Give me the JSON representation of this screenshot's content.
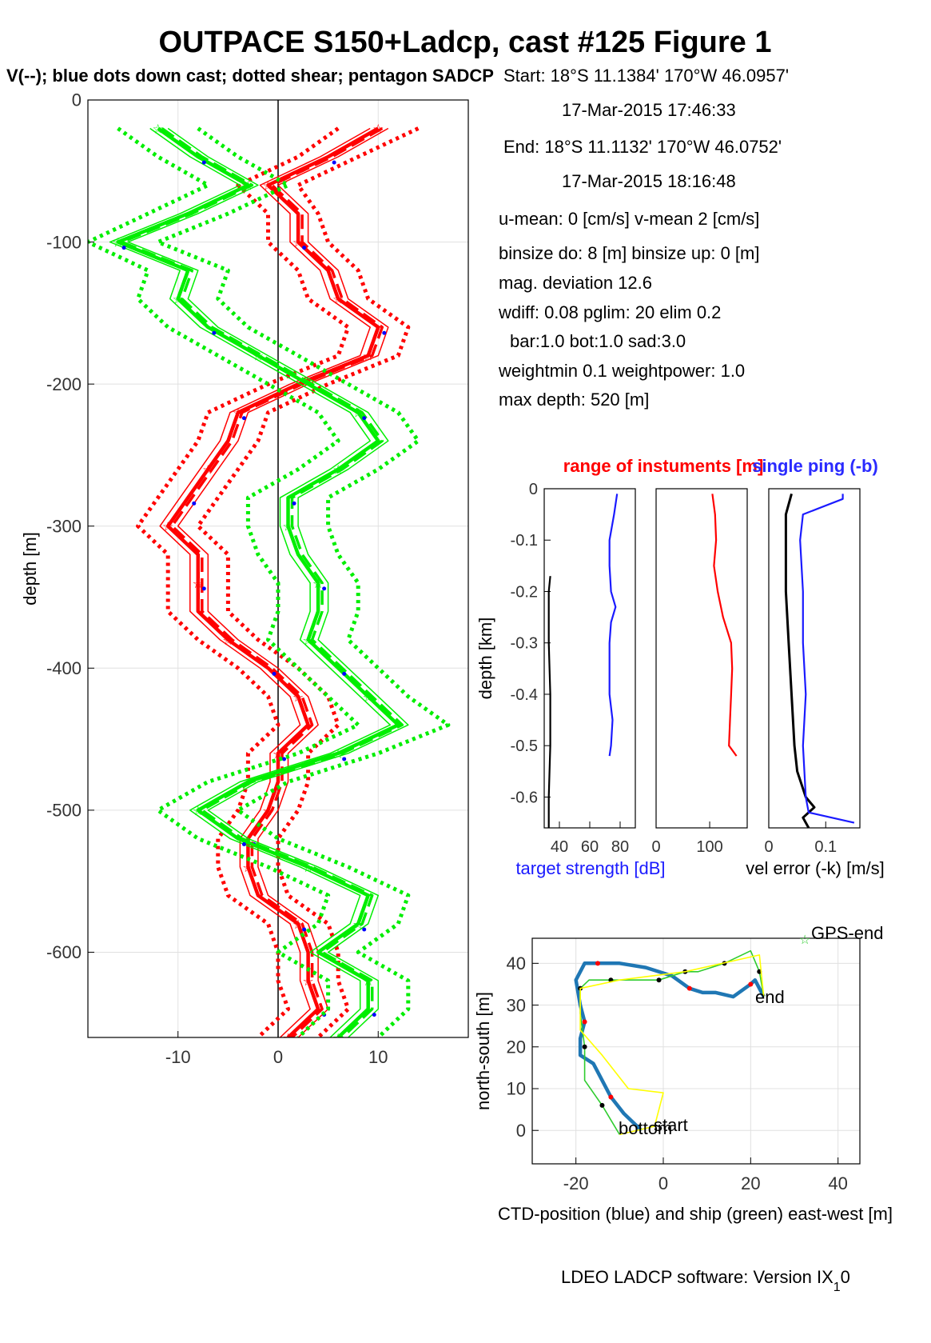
{
  "title": "OUTPACE S150+Ladcp, cast #125  Figure 1",
  "subtitle": "V(--); blue dots down cast; dotted shear; pentagon SADCP",
  "info": [
    "Start:  18°S 11.1384'      170°W 46.0957'",
    "17-Mar-2015 17:46:33",
    "End:  18°S 11.1132'      170°W 46.0752'",
    "17-Mar-2015 18:16:48",
    "u-mean:   0 [cm/s]    v-mean   2 [cm/s]",
    "binsize do: 8 [m]  binsize up:  0 [m]",
    "mag. deviation 12.6",
    "wdiff: 0.08  pglim: 20  elim 0.2",
    "bar:1.0 bot:1.0 sad:3.0",
    "weightmin 0.1  weightpower: 1.0",
    "max depth: 520 [m]"
  ],
  "footer": "LDEO LADCP software: Version IX",
  "footer_sub": "1",
  "footer_tail": "0",
  "colors": {
    "u": "#ff0000",
    "v": "#00ee00",
    "down": "#0000ff",
    "ts": "#1a1aff",
    "ctd": "#1f77b4",
    "ship": "#2ecc2e",
    "yellow": "#ffff00"
  },
  "chart_data": [
    {
      "type": "line",
      "name": "velocity-profile",
      "ylabel": "depth [m]",
      "xlim": [
        -19,
        19
      ],
      "ylim": [
        -660,
        0
      ],
      "xticks": [
        -10,
        0,
        10
      ],
      "xtick_labels": [
        "-10",
        "0",
        "10"
      ],
      "yticks": [
        0,
        -100,
        -200,
        -300,
        -400,
        -500,
        -600
      ],
      "ytick_labels": [
        "0",
        "-100",
        "-200",
        "-300",
        "-400",
        "-500",
        "-600"
      ],
      "grid": true,
      "series": [
        {
          "color": "red",
          "style": "solid",
          "depth": [
            -20,
            -40,
            -60,
            -80,
            -100,
            -120,
            -140,
            -160,
            -180,
            -200,
            -220,
            -240,
            -260,
            -280,
            -300,
            -320,
            -340,
            -360,
            -380,
            -400,
            -420,
            -440,
            -460,
            -480,
            -500,
            -520,
            -540,
            -560,
            -580,
            -600,
            -620,
            -640,
            -660
          ],
          "values": [
            10,
            5,
            -1,
            2,
            2,
            5,
            6,
            10,
            9,
            2,
            -4,
            -5,
            -7,
            -9,
            -11,
            -8,
            -8,
            -8,
            -5,
            -1,
            2,
            3,
            0,
            0,
            -1,
            -3,
            -3,
            -2,
            2,
            3,
            3,
            4,
            1
          ]
        },
        {
          "color": "red",
          "style": "dotted",
          "depth": [
            -20,
            -40,
            -60,
            -80,
            -100,
            -120,
            -140,
            -160,
            -180,
            -200,
            -220,
            -240,
            -260,
            -280,
            -300,
            -320,
            -340,
            -360,
            -380,
            -400,
            -420,
            -440,
            -460,
            -480,
            -500,
            -520,
            -540,
            -560,
            -580,
            -600,
            -620,
            -640,
            -660
          ],
          "values": [
            14,
            8,
            2,
            4,
            5,
            8,
            9,
            13,
            12,
            5,
            -1,
            -2,
            -4,
            -6,
            -8,
            -5,
            -5,
            -5,
            -2,
            2,
            5,
            6,
            3,
            3,
            2,
            0,
            0,
            1,
            5,
            6,
            6,
            7,
            4
          ]
        },
        {
          "color": "red",
          "style": "dotted",
          "depth": [
            -20,
            -40,
            -60,
            -80,
            -100,
            -120,
            -140,
            -160,
            -180,
            -200,
            -220,
            -240,
            -260,
            -280,
            -300,
            -320,
            -340,
            -360,
            -380,
            -400,
            -420,
            -440,
            -460,
            -480,
            -500,
            -520,
            -540,
            -560,
            -580,
            -600,
            -620,
            -640,
            -660
          ],
          "values": [
            6,
            2,
            -4,
            -1,
            -1,
            2,
            3,
            7,
            6,
            -1,
            -7,
            -8,
            -10,
            -12,
            -14,
            -11,
            -11,
            -11,
            -8,
            -4,
            -1,
            0,
            -3,
            -3,
            -4,
            -6,
            -6,
            -5,
            -1,
            0,
            0,
            1,
            -2
          ]
        },
        {
          "color": "green",
          "style": "solid",
          "depth": [
            -20,
            -40,
            -60,
            -80,
            -100,
            -120,
            -140,
            -160,
            -180,
            -200,
            -220,
            -240,
            -260,
            -280,
            -300,
            -320,
            -340,
            -360,
            -380,
            -400,
            -420,
            -440,
            -460,
            -480,
            -500,
            -520,
            -540,
            -560,
            -580,
            -600,
            -620,
            -640,
            -660
          ],
          "values": [
            -12,
            -8,
            -3,
            -9,
            -16,
            -9,
            -10,
            -7,
            -2,
            3,
            8,
            10,
            6,
            1,
            1,
            2,
            4,
            4,
            3,
            6,
            9,
            12,
            6,
            -3,
            -8,
            -4,
            3,
            9,
            8,
            4,
            9,
            9,
            6
          ]
        },
        {
          "color": "green",
          "style": "dotted",
          "depth": [
            -20,
            -40,
            -60,
            -80,
            -100,
            -120,
            -140,
            -160,
            -180,
            -200,
            -220,
            -240,
            -260,
            -280,
            -300,
            -320,
            -340,
            -360,
            -380,
            -400,
            -420,
            -440,
            -460,
            -480,
            -500,
            -520,
            -540,
            -560,
            -580,
            -600,
            -620,
            -640,
            -660
          ],
          "values": [
            -8,
            -4,
            1,
            -5,
            -12,
            -5,
            -6,
            -3,
            2,
            7,
            12,
            14,
            10,
            5,
            5,
            6,
            8,
            8,
            7,
            10,
            13,
            17,
            10,
            1,
            -4,
            0,
            7,
            13,
            12,
            8,
            13,
            13,
            10
          ]
        },
        {
          "color": "green",
          "style": "dotted",
          "depth": [
            -20,
            -40,
            -60,
            -80,
            -100,
            -120,
            -140,
            -160,
            -180,
            -200,
            -220,
            -240,
            -260,
            -280,
            -300,
            -320,
            -340,
            -360,
            -380,
            -400,
            -420,
            -440,
            -460,
            -480,
            -500,
            -520,
            -540,
            -560,
            -580,
            -600,
            -620,
            -640,
            -660
          ],
          "values": [
            -16,
            -12,
            -7,
            -13,
            -19,
            -13,
            -14,
            -11,
            -6,
            -1,
            4,
            6,
            2,
            -3,
            -3,
            -2,
            0,
            0,
            -1,
            2,
            5,
            8,
            2,
            -7,
            -12,
            -8,
            -1,
            5,
            4,
            0,
            5,
            5,
            2
          ]
        }
      ]
    },
    {
      "type": "line",
      "name": "target-strength",
      "title": "range of instuments [m]",
      "xlabel": "target strength [dB]",
      "ylabel": "depth [km]",
      "xlim": [
        30,
        90
      ],
      "ylim": [
        -0.66,
        0
      ],
      "xticks": [
        40,
        60,
        80
      ],
      "xtick_labels": [
        "40",
        "60",
        "80"
      ],
      "yticks": [
        0,
        -0.1,
        -0.2,
        -0.3,
        -0.4,
        -0.5,
        -0.6
      ],
      "ytick_labels": [
        "0",
        "-0.1",
        "-0.2",
        "-0.3",
        "-0.4",
        "-0.5",
        "-0.6"
      ],
      "series": [
        {
          "color": "blue",
          "depth": [
            -0.01,
            -0.05,
            -0.1,
            -0.15,
            -0.2,
            -0.23,
            -0.26,
            -0.3,
            -0.35,
            -0.4,
            -0.45,
            -0.5,
            -0.52
          ],
          "values": [
            78,
            76,
            73,
            73,
            74,
            77,
            74,
            73,
            73,
            73,
            75,
            74,
            73
          ]
        },
        {
          "color": "black",
          "depth": [
            -0.17,
            -0.2,
            -0.3,
            -0.4,
            -0.5,
            -0.6,
            -0.66
          ],
          "values": [
            34,
            33,
            33,
            34,
            34,
            33,
            33
          ]
        }
      ]
    },
    {
      "type": "line",
      "name": "range",
      "xlim": [
        0,
        170
      ],
      "ylim": [
        -0.66,
        0
      ],
      "xticks": [
        0,
        100
      ],
      "xtick_labels": [
        "0",
        "100"
      ],
      "series": [
        {
          "color": "red",
          "depth": [
            -0.01,
            -0.05,
            -0.1,
            -0.15,
            -0.2,
            -0.25,
            -0.3,
            -0.35,
            -0.4,
            -0.45,
            -0.5,
            -0.52
          ],
          "values": [
            105,
            110,
            112,
            108,
            115,
            125,
            140,
            142,
            140,
            138,
            136,
            150
          ]
        }
      ]
    },
    {
      "type": "line",
      "name": "vel-error",
      "title": "single ping (-b)",
      "xlabel": "vel error (-k) [m/s]",
      "xlim": [
        0,
        0.16
      ],
      "ylim": [
        -0.66,
        0
      ],
      "xticks": [
        0,
        0.1
      ],
      "xtick_labels": [
        "0",
        "0.1"
      ],
      "series": [
        {
          "color": "black",
          "depth": [
            -0.01,
            -0.05,
            -0.1,
            -0.2,
            -0.3,
            -0.4,
            -0.5,
            -0.55,
            -0.6,
            -0.62,
            -0.64,
            -0.66
          ],
          "values": [
            0.04,
            0.03,
            0.03,
            0.03,
            0.035,
            0.04,
            0.045,
            0.05,
            0.065,
            0.08,
            0.06,
            0.07
          ]
        },
        {
          "color": "blue",
          "depth": [
            -0.01,
            -0.02,
            -0.05,
            -0.1,
            -0.2,
            -0.3,
            -0.4,
            -0.5,
            -0.6,
            -0.63,
            -0.65
          ],
          "values": [
            0.13,
            0.13,
            0.06,
            0.055,
            0.06,
            0.06,
            0.065,
            0.06,
            0.065,
            0.07,
            0.15
          ]
        }
      ]
    },
    {
      "type": "line",
      "name": "position",
      "xlabel": "CTD-position (blue) and ship (green) east-west [m]",
      "ylabel": "north-south [m]",
      "xlim": [
        -30,
        45
      ],
      "ylim": [
        -8,
        46
      ],
      "xticks": [
        -20,
        0,
        20,
        40
      ],
      "xtick_labels": [
        "-20",
        "0",
        "20",
        "40"
      ],
      "yticks": [
        0,
        10,
        20,
        30,
        40
      ],
      "ytick_labels": [
        "0",
        "10",
        "20",
        "30",
        "40"
      ],
      "grid": true,
      "labels": [
        "GPS-end",
        "end",
        "start",
        "bottom"
      ],
      "series": [
        {
          "color": "blue",
          "x": [
            -5,
            -9,
            -12,
            -16,
            -19,
            -19,
            -18,
            -19,
            -20,
            -18,
            -15,
            -10,
            -4,
            2,
            6,
            9,
            12,
            16,
            20,
            21,
            23
          ],
          "y": [
            0,
            4,
            8,
            16,
            18,
            22,
            26,
            30,
            36,
            40,
            40,
            40,
            39,
            37,
            34,
            33,
            33,
            32,
            35,
            36,
            32
          ]
        },
        {
          "color": "green",
          "x": [
            -10,
            -14,
            -18,
            -18,
            -19,
            -19,
            -17,
            -12,
            -6,
            -1,
            2,
            5,
            8,
            14,
            20,
            22,
            23
          ],
          "y": [
            -1,
            6,
            12,
            20,
            28,
            34,
            36,
            36,
            36,
            36,
            37,
            38,
            38,
            40,
            43,
            38,
            32
          ]
        },
        {
          "color": "yellow",
          "x": [
            -10,
            -2,
            0,
            -8,
            -14,
            -19,
            -19,
            -10,
            5,
            22,
            23
          ],
          "y": [
            -1,
            1,
            9,
            10,
            18,
            24,
            34,
            36,
            38,
            42,
            32
          ]
        }
      ]
    }
  ]
}
